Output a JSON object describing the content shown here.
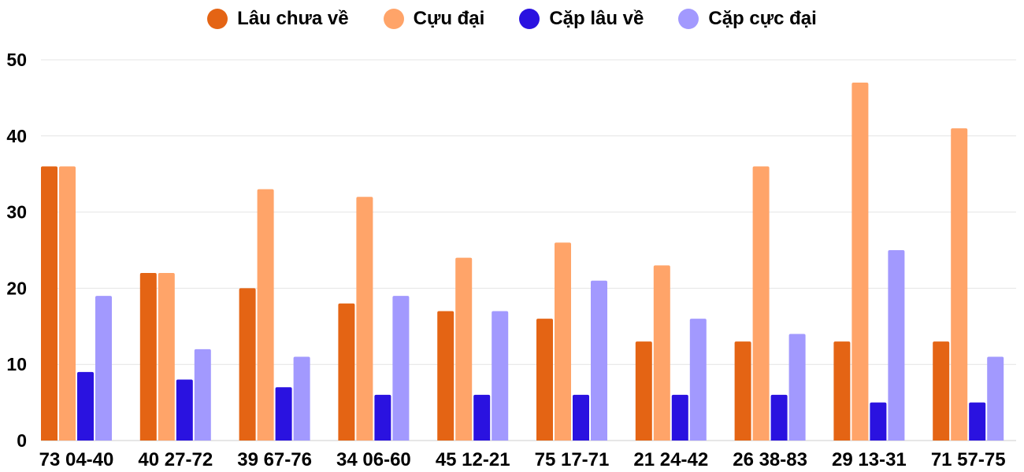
{
  "chart_data": {
    "type": "bar",
    "title": "",
    "xlabel": "",
    "ylabel": "",
    "ylim": [
      0,
      50
    ],
    "yticks": [
      0,
      10,
      20,
      30,
      40,
      50
    ],
    "grid": true,
    "legend_position": "top",
    "categories": [
      "73 04-40",
      "40 27-72",
      "39 67-76",
      "34 06-60",
      "45 12-21",
      "75 17-71",
      "21 24-42",
      "26 38-83",
      "29 13-31",
      "71 57-75"
    ],
    "series": [
      {
        "name": "Lâu chưa về",
        "color": "#e46414",
        "values": [
          36,
          22,
          20,
          18,
          17,
          16,
          13,
          13,
          13,
          13
        ]
      },
      {
        "name": "Cựu đại",
        "color": "#ffa469",
        "values": [
          36,
          22,
          33,
          32,
          24,
          26,
          23,
          36,
          47,
          41
        ]
      },
      {
        "name": "Cặp lâu về",
        "color": "#2a12e0",
        "values": [
          9,
          8,
          7,
          6,
          6,
          6,
          6,
          6,
          5,
          5
        ]
      },
      {
        "name": "Cặp cực đại",
        "color": "#a299fe",
        "values": [
          19,
          12,
          11,
          19,
          17,
          21,
          16,
          14,
          25,
          11
        ]
      }
    ]
  }
}
